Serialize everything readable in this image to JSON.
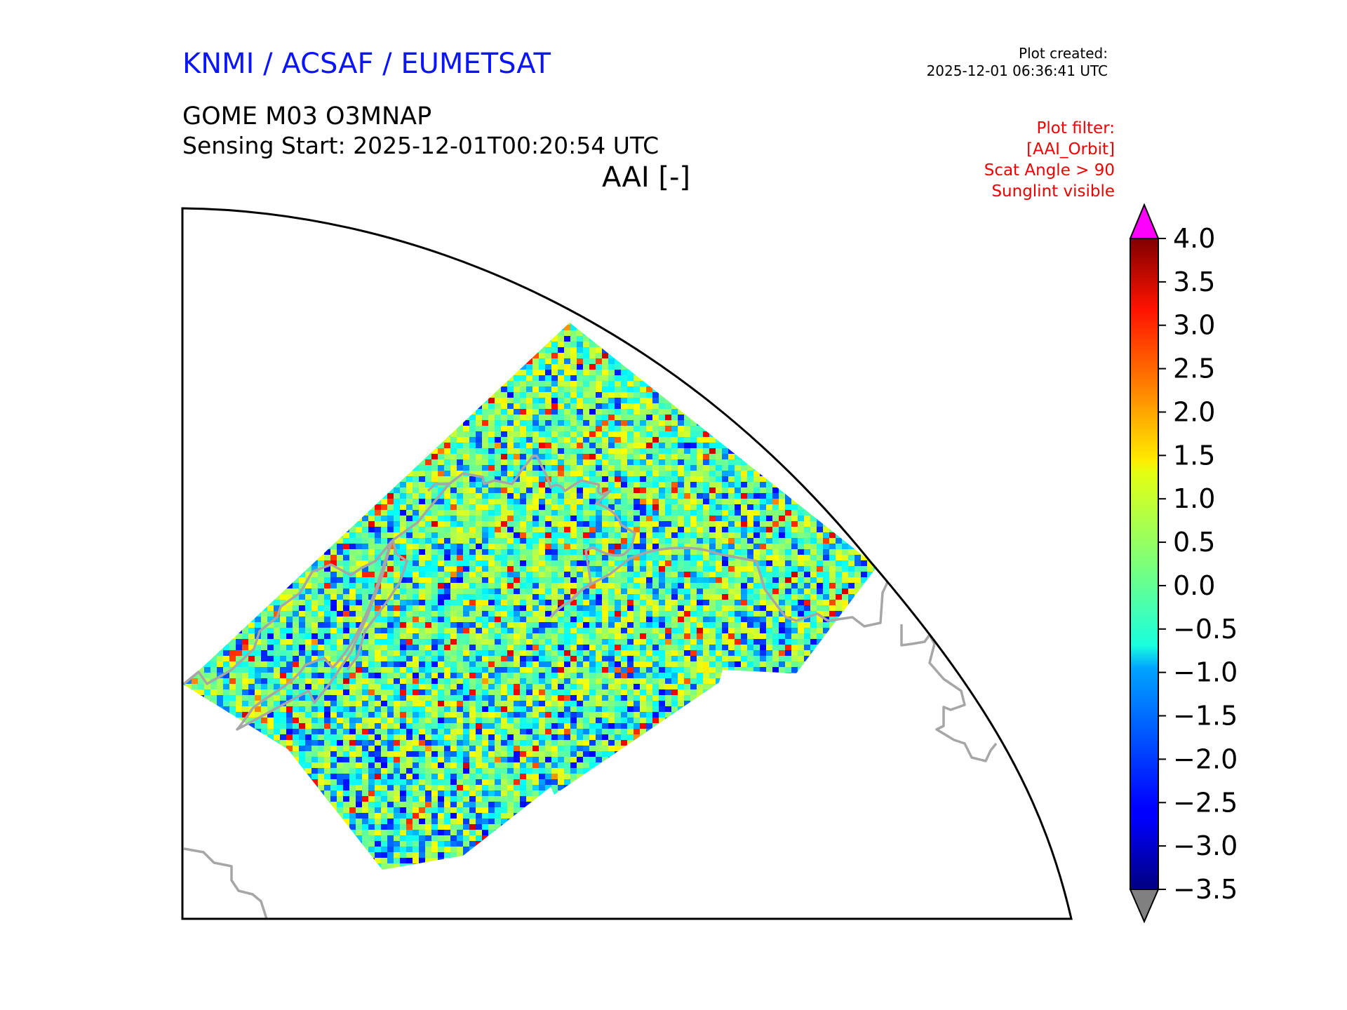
{
  "header": {
    "brand": "KNMI / ACSAF / EUMETSAT",
    "plot_created_label": "Plot created:",
    "plot_created_time": "2025-12-01 06:36:41 UTC",
    "product_title": "GOME M03 O3MNAP",
    "sensing_start": "Sensing Start: 2025-12-01T00:20:54 UTC",
    "variable_title": "AAI [-]"
  },
  "plot_filter": {
    "lines": [
      "Plot filter:",
      "[AAI_Orbit]",
      "Scat Angle > 90",
      "Sunglint visible"
    ]
  },
  "colorbar": {
    "ticks": [
      "4.0",
      "3.5",
      "3.0",
      "2.5",
      "2.0",
      "1.5",
      "1.0",
      "0.5",
      "0.0",
      "−0.5",
      "−1.0",
      "−1.5",
      "−2.0",
      "−2.5",
      "−3.0",
      "−3.5"
    ],
    "min": -3.5,
    "max": 4.0,
    "over_color": "#ff00ff",
    "under_color": "#808080",
    "colormap": "jet"
  },
  "map": {
    "coastline_color": "#a6a6a6",
    "boundary_color": "#000000"
  }
}
